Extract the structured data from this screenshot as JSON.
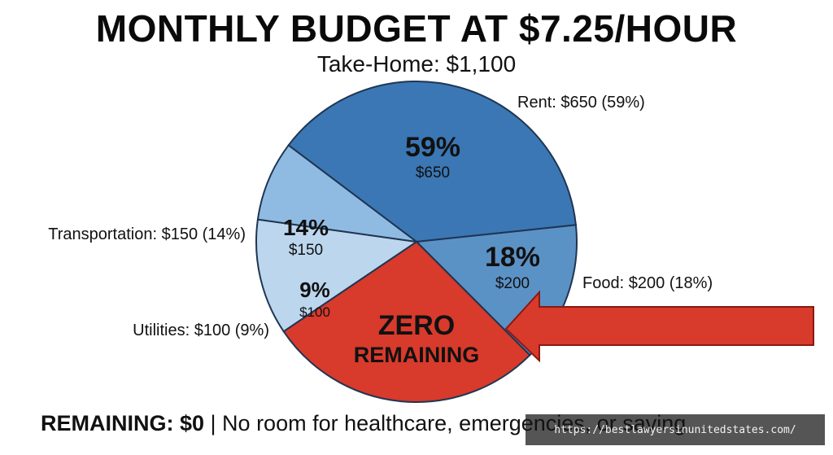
{
  "chart_data": {
    "type": "pie",
    "title": "MONTHLY BUDGET AT $7.25/HOUR",
    "subtitle": "Take-Home: $1,100",
    "slices": [
      {
        "key": "rent",
        "label": "Rent: $650 (59%)",
        "pct_label": "59%",
        "amount_label": "$650",
        "value": 650,
        "color": "#3b77b4"
      },
      {
        "key": "food",
        "label": "Food: $200 (18%)",
        "pct_label": "18%",
        "amount_label": "$200",
        "value": 200,
        "color": "#5b92c6"
      },
      {
        "key": "zero",
        "label": "",
        "value": 0,
        "color": "#d83a2c",
        "center_label_1": "ZERO",
        "center_label_2": "REMAINING"
      },
      {
        "key": "utilities",
        "label": "Utilities: $100 (9%)",
        "pct_label": "9%",
        "amount_label": "$100",
        "value": 100,
        "color": "#bcd6ee"
      },
      {
        "key": "transportation",
        "label": "Transportation: $150 (14%)",
        "pct_label": "14%",
        "amount_label": "$150",
        "value": 150,
        "color": "#8fbbe3"
      }
    ],
    "colors": {
      "outline": "#1f3552",
      "arrow": "#d83a2c"
    }
  },
  "footer": {
    "bold": "REMAINING: $0",
    "rest": " | No room for healthcare, emergencies, or saving"
  },
  "watermark": "https://bestlawyersinunitedstates.com/"
}
